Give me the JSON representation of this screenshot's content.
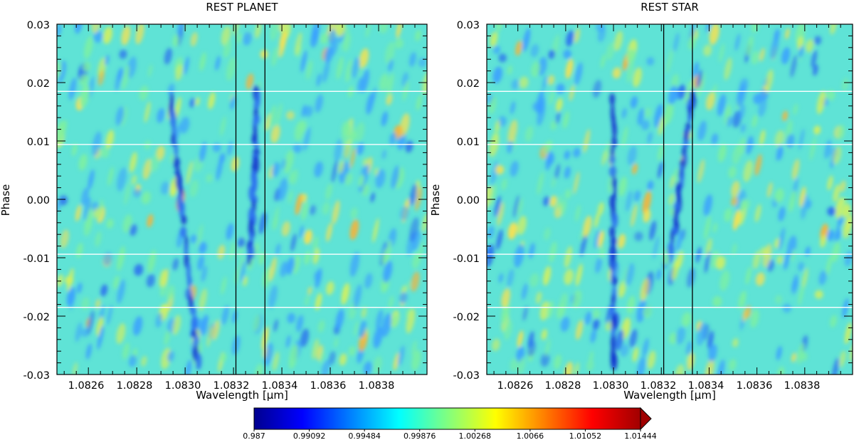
{
  "chart_data": [
    {
      "type": "heatmap",
      "title": "REST PLANET",
      "xlabel": "Wavelength [μm]",
      "ylabel": "Phase",
      "xlim": [
        1.08247,
        1.084
      ],
      "ylim": [
        -0.03,
        0.03
      ],
      "x_ticks": [
        1.0826,
        1.0828,
        1.083,
        1.0832,
        1.0834,
        1.0836,
        1.0838
      ],
      "x_tick_labels": [
        "1.0826",
        "1.0828",
        "1.0830",
        "1.0832",
        "1.0834",
        "1.0836",
        "1.0838"
      ],
      "y_ticks": [
        -0.03,
        -0.02,
        -0.01,
        0.0,
        0.01,
        0.02,
        0.03
      ],
      "y_tick_labels": [
        "-0.03",
        "-0.02",
        "-0.01",
        "0.00",
        "0.01",
        "0.02",
        "0.03"
      ],
      "vertical_lines": [
        1.08321,
        1.08333
      ],
      "horizontal_lines": [
        0.0185,
        0.0094,
        -0.0094,
        -0.0185
      ],
      "absorption_tracks": [
        {
          "x1": 1.08294,
          "y1": 0.017,
          "x2": 1.08305,
          "y2": -0.028
        },
        {
          "x1": 1.0833,
          "y1": 0.018,
          "x2": 1.08327,
          "y2": -0.01
        }
      ]
    },
    {
      "type": "heatmap",
      "title": "REST STAR",
      "xlabel": "Wavelength [μm]",
      "ylabel": "Phase",
      "xlim": [
        1.08247,
        1.084
      ],
      "ylim": [
        -0.03,
        0.03
      ],
      "x_ticks": [
        1.0826,
        1.0828,
        1.083,
        1.0832,
        1.0834,
        1.0836,
        1.0838
      ],
      "x_tick_labels": [
        "1.0826",
        "1.0828",
        "1.0830",
        "1.0832",
        "1.0834",
        "1.0836",
        "1.0838"
      ],
      "y_ticks": [
        -0.03,
        -0.02,
        -0.01,
        0.0,
        0.01,
        0.02,
        0.03
      ],
      "y_tick_labels": [
        "-0.03",
        "-0.02",
        "-0.01",
        "0.00",
        "0.01",
        "0.02",
        "0.03"
      ],
      "vertical_lines": [
        1.08321,
        1.08333
      ],
      "horizontal_lines": [
        0.0185,
        0.0094,
        -0.0094,
        -0.0185
      ],
      "absorption_tracks": [
        {
          "x1": 1.083,
          "y1": 0.017,
          "x2": 1.083,
          "y2": -0.028
        },
        {
          "x1": 1.08333,
          "y1": 0.018,
          "x2": 1.08324,
          "y2": -0.01
        }
      ]
    }
  ],
  "colorbar": {
    "labels": [
      "0.987",
      "0.99092",
      "0.99484",
      "0.99876",
      "1.00268",
      "1.0066",
      "1.01052",
      "1.01444"
    ],
    "min": 0.987,
    "max": 1.01444,
    "extend": "max",
    "colormap": "jet",
    "colors": [
      "#00008f",
      "#0000ff",
      "#0080ff",
      "#00ffff",
      "#80ff80",
      "#ffff00",
      "#ff8000",
      "#ff0000",
      "#a00000"
    ]
  },
  "background_color": "#5fe3d6",
  "line_color": "#000000",
  "hline_color": "#ffffff"
}
